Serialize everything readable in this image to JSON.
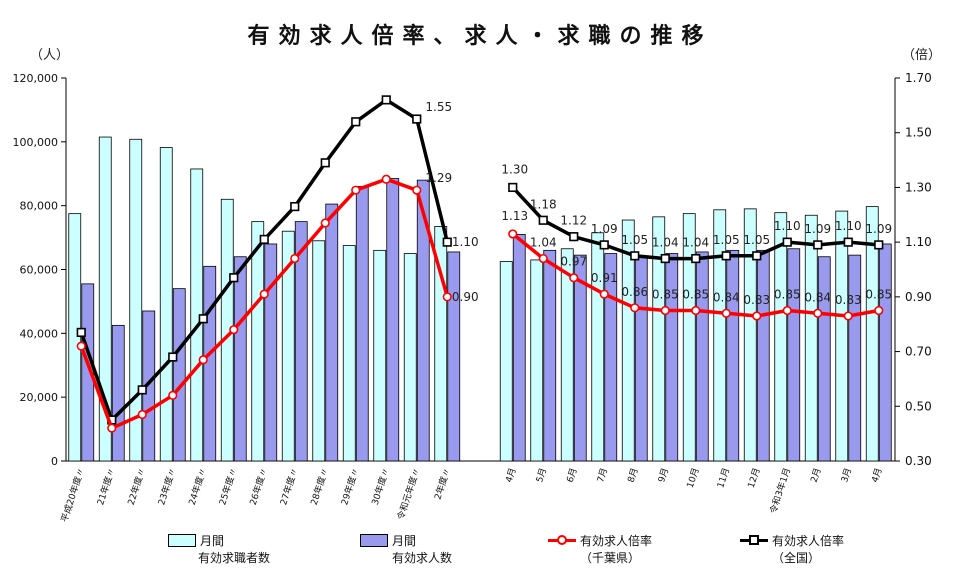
{
  "title": "有効求人倍率、求人・求職の推移",
  "left_unit": "（人）",
  "right_unit": "（倍）",
  "colors": {
    "applicants": "#ccffff",
    "openings": "#9999ee",
    "chiba": "#ff0000",
    "national": "#000000"
  },
  "legend": {
    "applicants": {
      "label": "月間",
      "sub": "有効求職者数"
    },
    "openings": {
      "label": "月間",
      "sub": "有効求人数"
    },
    "chiba": {
      "label": "有効求人倍率",
      "sub": "（千葉県）"
    },
    "national": {
      "label": "有効求人倍率",
      "sub": "（全国）"
    }
  },
  "chart_data": {
    "type": "bar",
    "title": "有効求人倍率、求人・求職の推移",
    "y_left": {
      "label": "（人）",
      "ylim": [
        0,
        120000
      ],
      "ticks": [
        "0",
        "20,000",
        "40,000",
        "60,000",
        "80,000",
        "100,000",
        "120,000"
      ]
    },
    "y_right": {
      "label": "（倍）",
      "ylim": [
        0.3,
        1.7
      ],
      "ticks": [
        "0.30",
        "0.50",
        "0.70",
        "0.90",
        "1.10",
        "1.30",
        "1.50",
        "1.70"
      ]
    },
    "categories": [
      "平成20年度",
      "21年度",
      "22年度",
      "23年度",
      "24年度",
      "25年度",
      "26年度",
      "27年度",
      "28年度",
      "29年度",
      "30年度",
      "令和元年度",
      "2年度",
      "4月",
      "5月",
      "6月",
      "7月",
      "8月",
      "9月",
      "10月",
      "11月",
      "12月",
      "令和3年1月",
      "2月",
      "3月",
      "4月"
    ],
    "x_labels": [
      "平成20年度〃",
      "21年度〃",
      "22年度〃",
      "23年度〃",
      "24年度〃",
      "25年度〃",
      "26年度〃",
      "27年度〃",
      "28年度〃",
      "29年度〃",
      "30年度〃",
      "令和元年度〃",
      "2年度〃",
      "4月",
      "5月",
      "6月",
      "7月",
      "8月",
      "9月",
      "10月",
      "11月",
      "12月",
      "令和3年1月",
      "2月",
      "3月",
      "4月"
    ],
    "series": [
      {
        "name": "有効求職者数",
        "axis": "left",
        "type": "bar",
        "values": [
          77500,
          101500,
          100800,
          98200,
          91500,
          82000,
          75000,
          72000,
          69000,
          67500,
          66000,
          65000,
          73500,
          62500,
          63000,
          66500,
          71500,
          75500,
          76500,
          77500,
          78700,
          79000,
          77800,
          77000,
          78300,
          79700
        ]
      },
      {
        "name": "有効求人数",
        "axis": "left",
        "type": "bar",
        "values": [
          55500,
          42500,
          47000,
          54000,
          61000,
          64000,
          68000,
          75000,
          80500,
          86000,
          88500,
          88000,
          65500,
          71000,
          66000,
          64500,
          65000,
          64000,
          65000,
          65500,
          66000,
          66000,
          66500,
          64000,
          64500,
          68000
        ]
      },
      {
        "name": "有効求人倍率（千葉県）",
        "axis": "right",
        "type": "line",
        "values": [
          0.72,
          0.42,
          0.47,
          0.54,
          0.67,
          0.78,
          0.91,
          1.04,
          1.17,
          1.29,
          1.33,
          1.29,
          0.9,
          1.13,
          1.04,
          0.97,
          0.91,
          0.86,
          0.85,
          0.85,
          0.84,
          0.83,
          0.85,
          0.84,
          0.83,
          0.85
        ]
      },
      {
        "name": "有効求人倍率（全国）",
        "axis": "right",
        "type": "line",
        "values": [
          0.77,
          0.45,
          0.56,
          0.68,
          0.82,
          0.97,
          1.11,
          1.23,
          1.39,
          1.54,
          1.62,
          1.55,
          1.1,
          1.3,
          1.18,
          1.12,
          1.09,
          1.05,
          1.04,
          1.04,
          1.05,
          1.05,
          1.1,
          1.09,
          1.1,
          1.09
        ]
      }
    ],
    "annotations": [
      {
        "series": "有効求人倍率（全国）",
        "index": 11,
        "text": "1.55"
      },
      {
        "series": "有効求人倍率（千葉県）",
        "index": 11,
        "text": "1.29"
      },
      {
        "series": "有効求人倍率（全国）",
        "index": 12,
        "text": "1.10"
      },
      {
        "series": "有効求人倍率（千葉県）",
        "index": 12,
        "text": "0.90"
      },
      {
        "series": "有効求人倍率（全国）",
        "index": 13,
        "text": "1.30"
      },
      {
        "series": "有効求人倍率（千葉県）",
        "index": 13,
        "text": "1.13"
      },
      {
        "series": "有効求人倍率（全国）",
        "index": 14,
        "text": "1.18"
      },
      {
        "series": "有効求人倍率（千葉県）",
        "index": 14,
        "text": "1.04"
      },
      {
        "series": "有効求人倍率（全国）",
        "index": 15,
        "text": "1.12"
      },
      {
        "series": "有効求人倍率（千葉県）",
        "index": 15,
        "text": "0.97"
      },
      {
        "series": "有効求人倍率（全国）",
        "index": 16,
        "text": "1.09"
      },
      {
        "series": "有効求人倍率（千葉県）",
        "index": 16,
        "text": "0.91"
      },
      {
        "series": "有効求人倍率（全国）",
        "index": 17,
        "text": "1.05"
      },
      {
        "series": "有効求人倍率（千葉県）",
        "index": 17,
        "text": "0.86"
      },
      {
        "series": "有効求人倍率（全国）",
        "index": 18,
        "text": "1.04"
      },
      {
        "series": "有効求人倍率（千葉県）",
        "index": 18,
        "text": "0.85"
      },
      {
        "series": "有効求人倍率（全国）",
        "index": 19,
        "text": "1.04"
      },
      {
        "series": "有効求人倍率（千葉県）",
        "index": 19,
        "text": "0.85"
      },
      {
        "series": "有効求人倍率（全国）",
        "index": 20,
        "text": "1.05"
      },
      {
        "series": "有効求人倍率（千葉県）",
        "index": 20,
        "text": "0.84"
      },
      {
        "series": "有効求人倍率（全国）",
        "index": 21,
        "text": "1.05"
      },
      {
        "series": "有効求人倍率（千葉県）",
        "index": 21,
        "text": "0.83"
      },
      {
        "series": "有効求人倍率（全国）",
        "index": 22,
        "text": "1.10"
      },
      {
        "series": "有効求人倍率（千葉県）",
        "index": 22,
        "text": "0.85"
      },
      {
        "series": "有効求人倍率（全国）",
        "index": 23,
        "text": "1.09"
      },
      {
        "series": "有効求人倍率（千葉県）",
        "index": 23,
        "text": "0.84"
      },
      {
        "series": "有効求人倍率（全国）",
        "index": 24,
        "text": "1.10"
      },
      {
        "series": "有効求人倍率（千葉県）",
        "index": 24,
        "text": "0.83"
      },
      {
        "series": "有効求人倍率（全国）",
        "index": 25,
        "text": "1.09"
      },
      {
        "series": "有効求人倍率（千葉県）",
        "index": 25,
        "text": "0.85"
      }
    ],
    "legend_position": "bottom",
    "grid": false
  }
}
